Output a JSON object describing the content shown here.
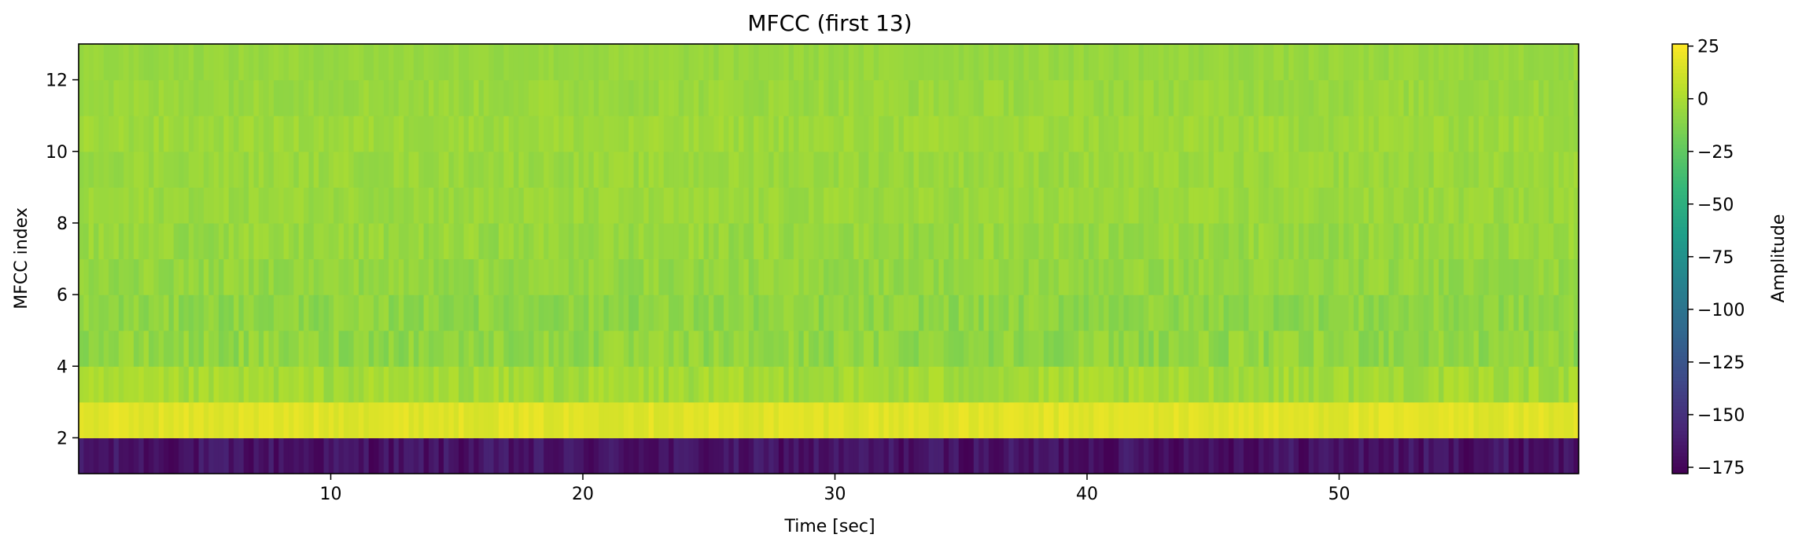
{
  "chart_data": {
    "type": "heatmap",
    "title": "MFCC (first 13)",
    "xlabel": "Time [sec]",
    "ylabel": "MFCC index",
    "xlim": [
      0.0,
      59.5
    ],
    "ylim": [
      1,
      13
    ],
    "x_ticks": [
      10,
      20,
      30,
      40,
      50
    ],
    "y_ticks": [
      2,
      4,
      6,
      8,
      10,
      12
    ],
    "colormap": "viridis",
    "colorbar": {
      "label": "Amplitude",
      "range": [
        -178,
        26
      ],
      "ticks": [
        25,
        0,
        -25,
        -50,
        -75,
        -100,
        -125,
        -150,
        -175
      ]
    },
    "rows": [
      {
        "index": 1,
        "mean": -168,
        "variation": 10
      },
      {
        "index": 2,
        "mean": 17,
        "variation": 4
      },
      {
        "index": 3,
        "mean": -2,
        "variation": 6
      },
      {
        "index": 4,
        "mean": -8,
        "variation": 7
      },
      {
        "index": 5,
        "mean": -9,
        "variation": 6
      },
      {
        "index": 6,
        "mean": -7,
        "variation": 5
      },
      {
        "index": 7,
        "mean": -6,
        "variation": 5
      },
      {
        "index": 8,
        "mean": -5,
        "variation": 4
      },
      {
        "index": 9,
        "mean": -5,
        "variation": 4
      },
      {
        "index": 10,
        "mean": -4,
        "variation": 4
      },
      {
        "index": 11,
        "mean": -5,
        "variation": 4
      },
      {
        "index": 12,
        "mean": -6,
        "variation": 3
      }
    ]
  }
}
